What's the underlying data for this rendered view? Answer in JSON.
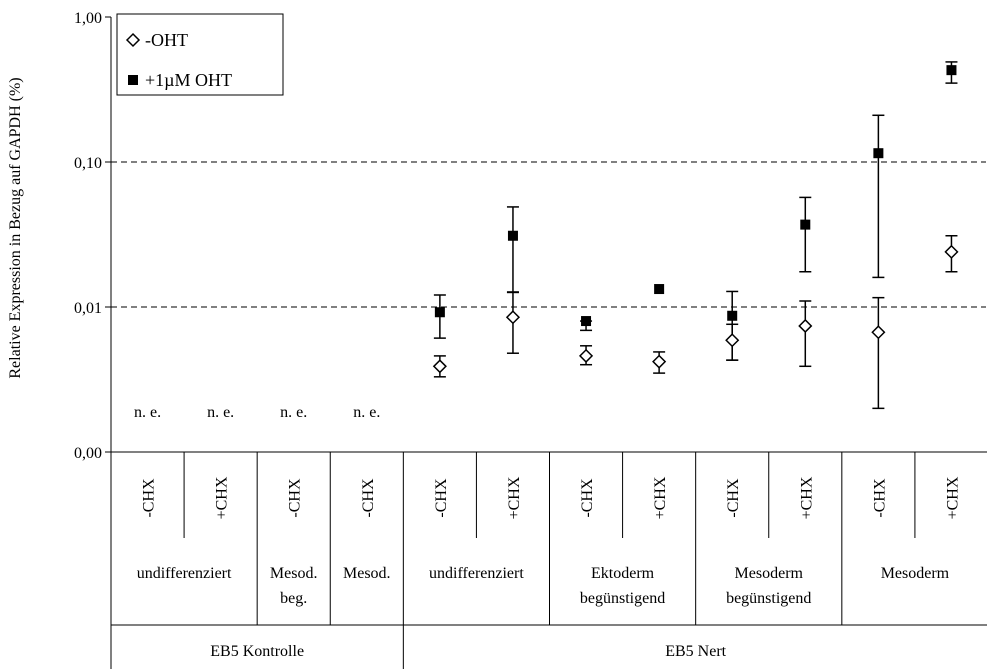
{
  "chart_data": {
    "type": "scatter",
    "y_scale": "log",
    "ylabel": "Relative Expression in Bezug auf GAPDH (%)",
    "ylim": [
      0.001,
      1
    ],
    "y_ticks": [
      {
        "value": 1,
        "label": "1,00"
      },
      {
        "value": 0.1,
        "label": "0,10"
      },
      {
        "value": 0.01,
        "label": "0,01"
      },
      {
        "value": 0.001,
        "label": "0,00"
      }
    ],
    "gridlines": [
      0.1,
      0.01
    ],
    "categories": [
      "-CHX",
      "+CHX",
      "-CHX",
      "-CHX",
      "-CHX",
      "+CHX",
      "-CHX",
      "+CHX",
      "-CHX",
      "+CHX",
      "-CHX",
      "+CHX"
    ],
    "group_labels": [
      {
        "label": "undifferenziert",
        "start": 0,
        "end": 2
      },
      {
        "label": "Mesod. beg.",
        "start": 2,
        "end": 3
      },
      {
        "label": "Mesod.",
        "start": 3,
        "end": 4
      },
      {
        "label": "undifferenziert",
        "start": 4,
        "end": 6
      },
      {
        "label": "Ektoderm begünstigend",
        "start": 6,
        "end": 8
      },
      {
        "label": "Mesoderm begünstigend",
        "start": 8,
        "end": 10
      },
      {
        "label": "Mesoderm",
        "start": 10,
        "end": 12
      }
    ],
    "top_groups": [
      {
        "label": "EB5 Kontrolle",
        "start": 0,
        "end": 4
      },
      {
        "label": "EB5 Nert",
        "start": 4,
        "end": 12
      }
    ],
    "not_detected_label": "n. e.",
    "not_detected": [
      0,
      1,
      2,
      3
    ],
    "series": [
      {
        "name": "-OHT",
        "marker": "diamond-open",
        "values": [
          null,
          null,
          null,
          null,
          0.0039,
          0.0085,
          0.0046,
          0.0042,
          0.0059,
          0.0074,
          0.0067,
          0.024
        ],
        "err_low": [
          null,
          null,
          null,
          null,
          0.0033,
          0.0048,
          0.004,
          0.0035,
          0.0043,
          0.0039,
          0.002,
          0.0175
        ],
        "err_high": [
          null,
          null,
          null,
          null,
          0.0046,
          0.0126,
          0.0054,
          0.0049,
          0.0076,
          0.011,
          0.0116,
          0.031
        ]
      },
      {
        "name": "+1µM OHT",
        "marker": "square-filled",
        "values": [
          null,
          null,
          null,
          null,
          0.0092,
          0.031,
          0.008,
          0.0133,
          0.0087,
          0.037,
          0.115,
          0.43
        ],
        "err_low": [
          null,
          null,
          null,
          null,
          0.0061,
          0.0127,
          0.0069,
          0.0133,
          0.0043,
          0.0175,
          0.016,
          0.35
        ],
        "err_high": [
          null,
          null,
          null,
          null,
          0.0121,
          0.049,
          0.008,
          0.0133,
          0.0128,
          0.057,
          0.21,
          0.49
        ]
      }
    ],
    "legend": {
      "position": "top-left"
    }
  }
}
